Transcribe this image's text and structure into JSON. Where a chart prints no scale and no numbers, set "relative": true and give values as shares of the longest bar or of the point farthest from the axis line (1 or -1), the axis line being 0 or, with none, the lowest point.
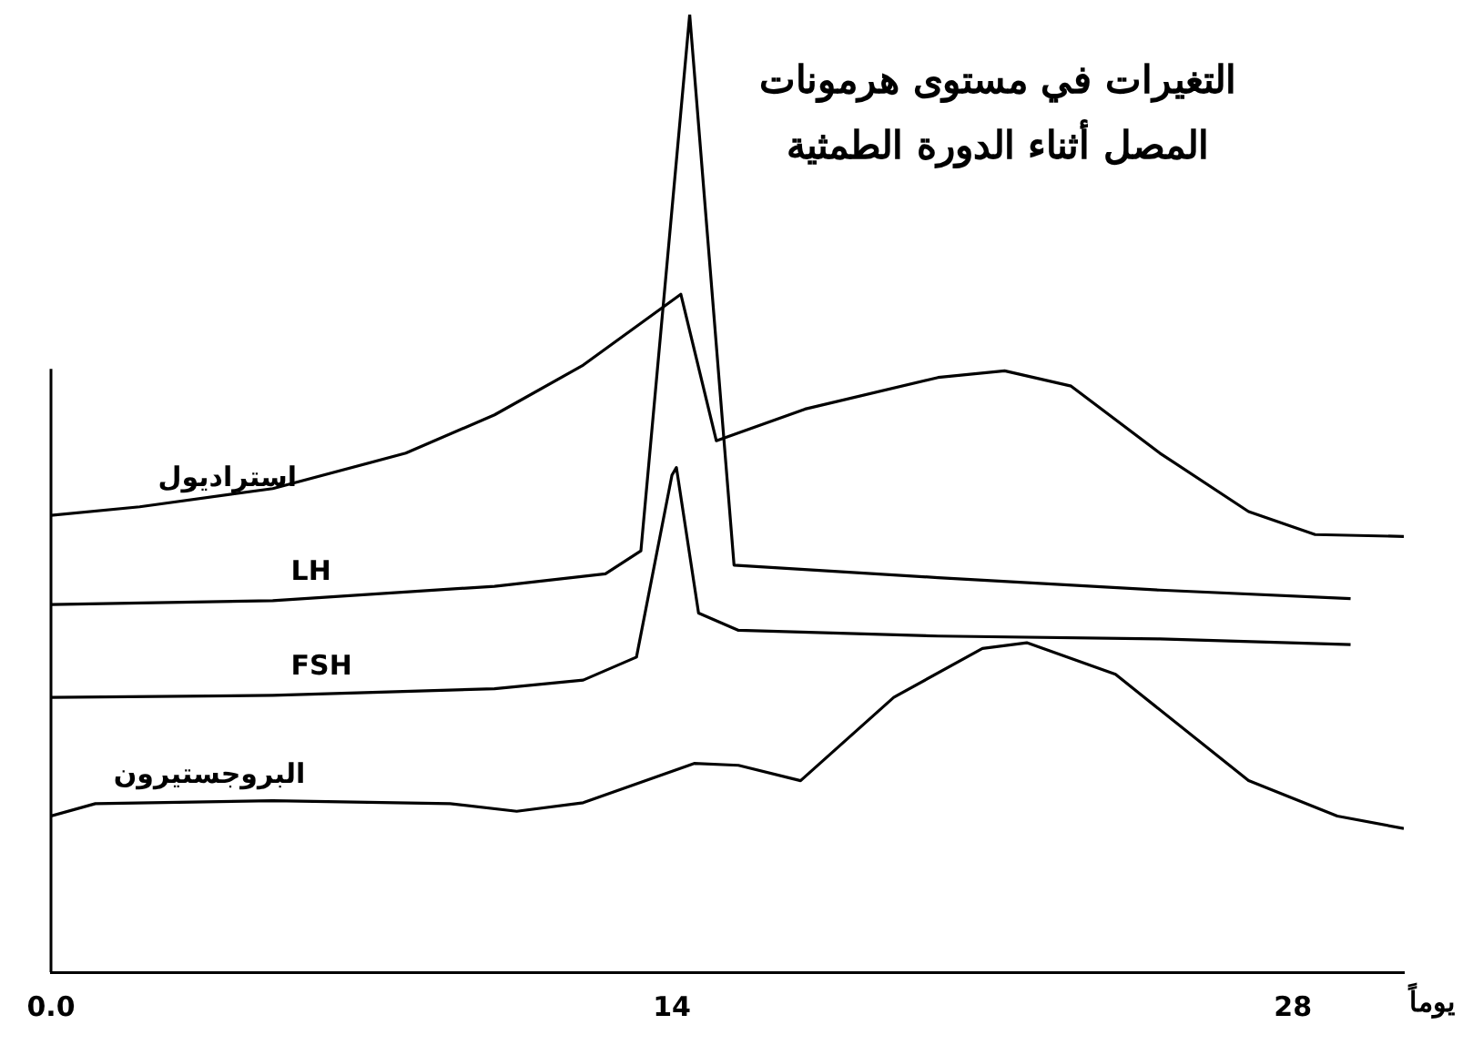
{
  "chart_data": {
    "type": "line",
    "title": "التغيرات في مستوى هرمونات\nالمصل أثناء الدورة الطمثية",
    "xlabel": "يوماً",
    "relative": true,
    "xlim": [
      0,
      30.5
    ],
    "xticks": [
      {
        "value": 0,
        "label": "0.0"
      },
      14,
      28
    ],
    "grid": false,
    "legend": false,
    "marker": "none",
    "line_style": "solid",
    "series": [
      {
        "name": "استراديول",
        "color": "#000000",
        "x": [
          0,
          2,
          5,
          8,
          10,
          12,
          14.2,
          15,
          17,
          20,
          21.5,
          23,
          25,
          27,
          28.5,
          30.5
        ],
        "values": [
          0.477,
          0.486,
          0.505,
          0.542,
          0.582,
          0.634,
          0.708,
          0.555,
          0.588,
          0.621,
          0.628,
          0.612,
          0.542,
          0.481,
          0.457,
          0.455
        ]
      },
      {
        "name": "LH",
        "color": "#000000",
        "x": [
          0,
          5,
          10,
          12.5,
          13.3,
          14.4,
          15.4,
          20,
          25,
          29.3
        ],
        "values": [
          0.384,
          0.388,
          0.403,
          0.416,
          0.44,
          1,
          0.425,
          0.412,
          0.399,
          0.39
        ]
      },
      {
        "name": "FSH",
        "color": "#000000",
        "x": [
          0,
          5,
          10,
          12,
          13.2,
          14,
          14.1,
          14.6,
          15.5,
          20,
          25,
          29.3
        ],
        "values": [
          0.287,
          0.289,
          0.296,
          0.305,
          0.329,
          0.519,
          0.527,
          0.375,
          0.357,
          0.351,
          0.348,
          0.342
        ]
      },
      {
        "name": "البروجستيرون",
        "color": "#000000",
        "x": [
          0,
          1,
          5,
          9,
          10.5,
          12,
          14.5,
          15.5,
          16.9,
          19,
          21,
          22,
          24,
          27,
          29,
          30.5
        ],
        "values": [
          0.163,
          0.176,
          0.179,
          0.176,
          0.168,
          0.177,
          0.218,
          0.216,
          0.2,
          0.287,
          0.338,
          0.344,
          0.311,
          0.2,
          0.163,
          0.15
        ]
      }
    ]
  }
}
